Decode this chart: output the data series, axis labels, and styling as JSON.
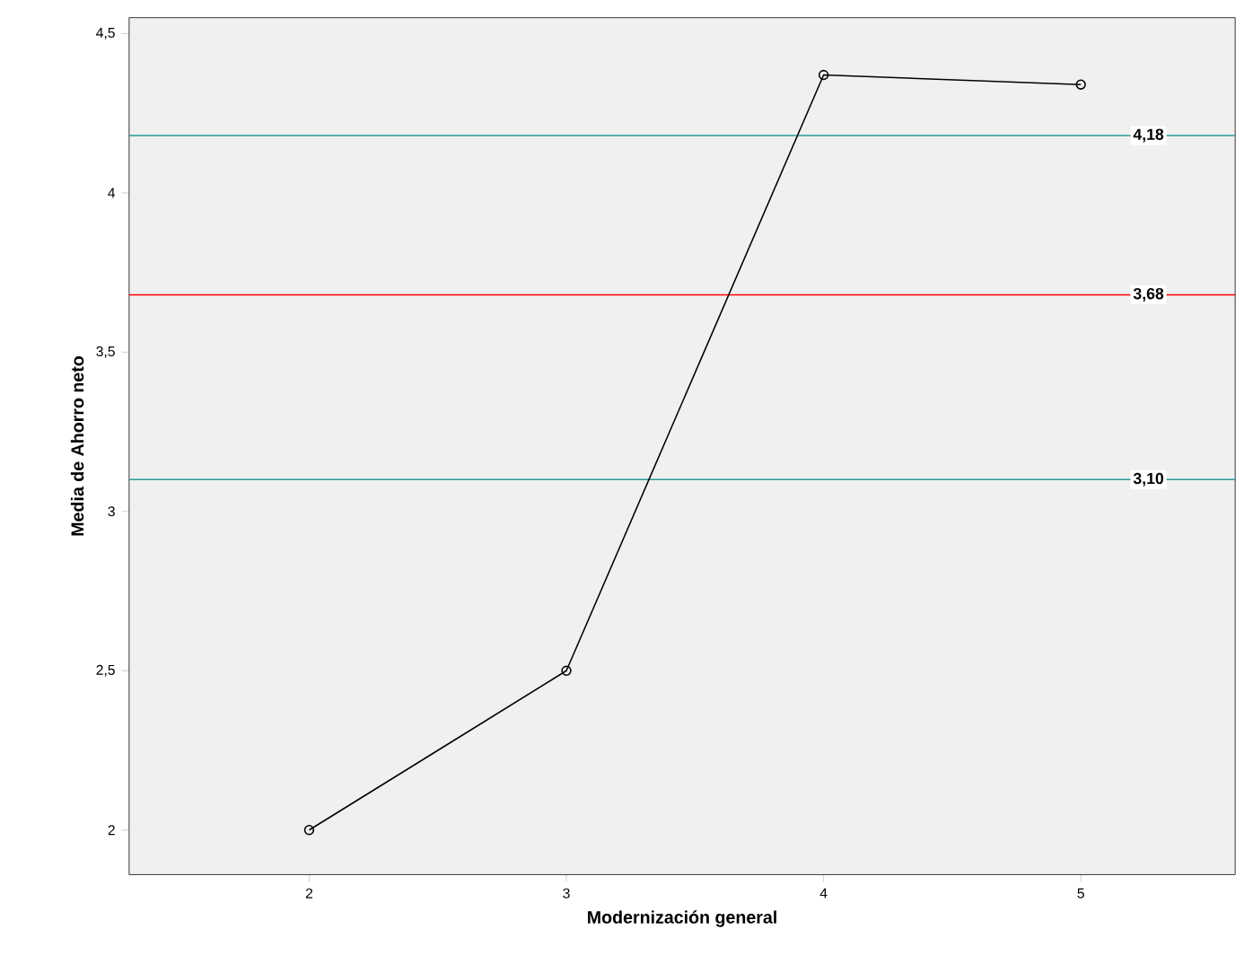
{
  "chart_data": {
    "type": "line",
    "xlabel": "Modernización general",
    "ylabel": "Media de Ahorro neto",
    "x": [
      2,
      3,
      4,
      5
    ],
    "series": [
      {
        "color": "#000000",
        "values": [
          2.0,
          2.5,
          4.37,
          4.34
        ]
      }
    ],
    "xlim": [
      1.3,
      5.6
    ],
    "xticks": [
      2,
      3,
      4,
      5
    ],
    "ylim": [
      1.86,
      4.55
    ],
    "yticks": [
      {
        "value": 2,
        "label": "2"
      },
      {
        "value": 2.5,
        "label": "2,5"
      },
      {
        "value": 3,
        "label": "3"
      },
      {
        "value": 3.5,
        "label": "3,5"
      },
      {
        "value": 4,
        "label": "4"
      },
      {
        "value": 4.5,
        "label": "4,5"
      }
    ],
    "ref_lines": [
      {
        "axis": "y",
        "value": 4.18,
        "label": "4,18",
        "color": "#2a9a9a"
      },
      {
        "axis": "y",
        "value": 3.68,
        "label": "3,68",
        "color": "#ff0000"
      },
      {
        "axis": "y",
        "value": 3.1,
        "label": "3,10",
        "color": "#2a9a9a"
      }
    ],
    "marker": "circle",
    "line_style": "solid",
    "grid": false
  }
}
